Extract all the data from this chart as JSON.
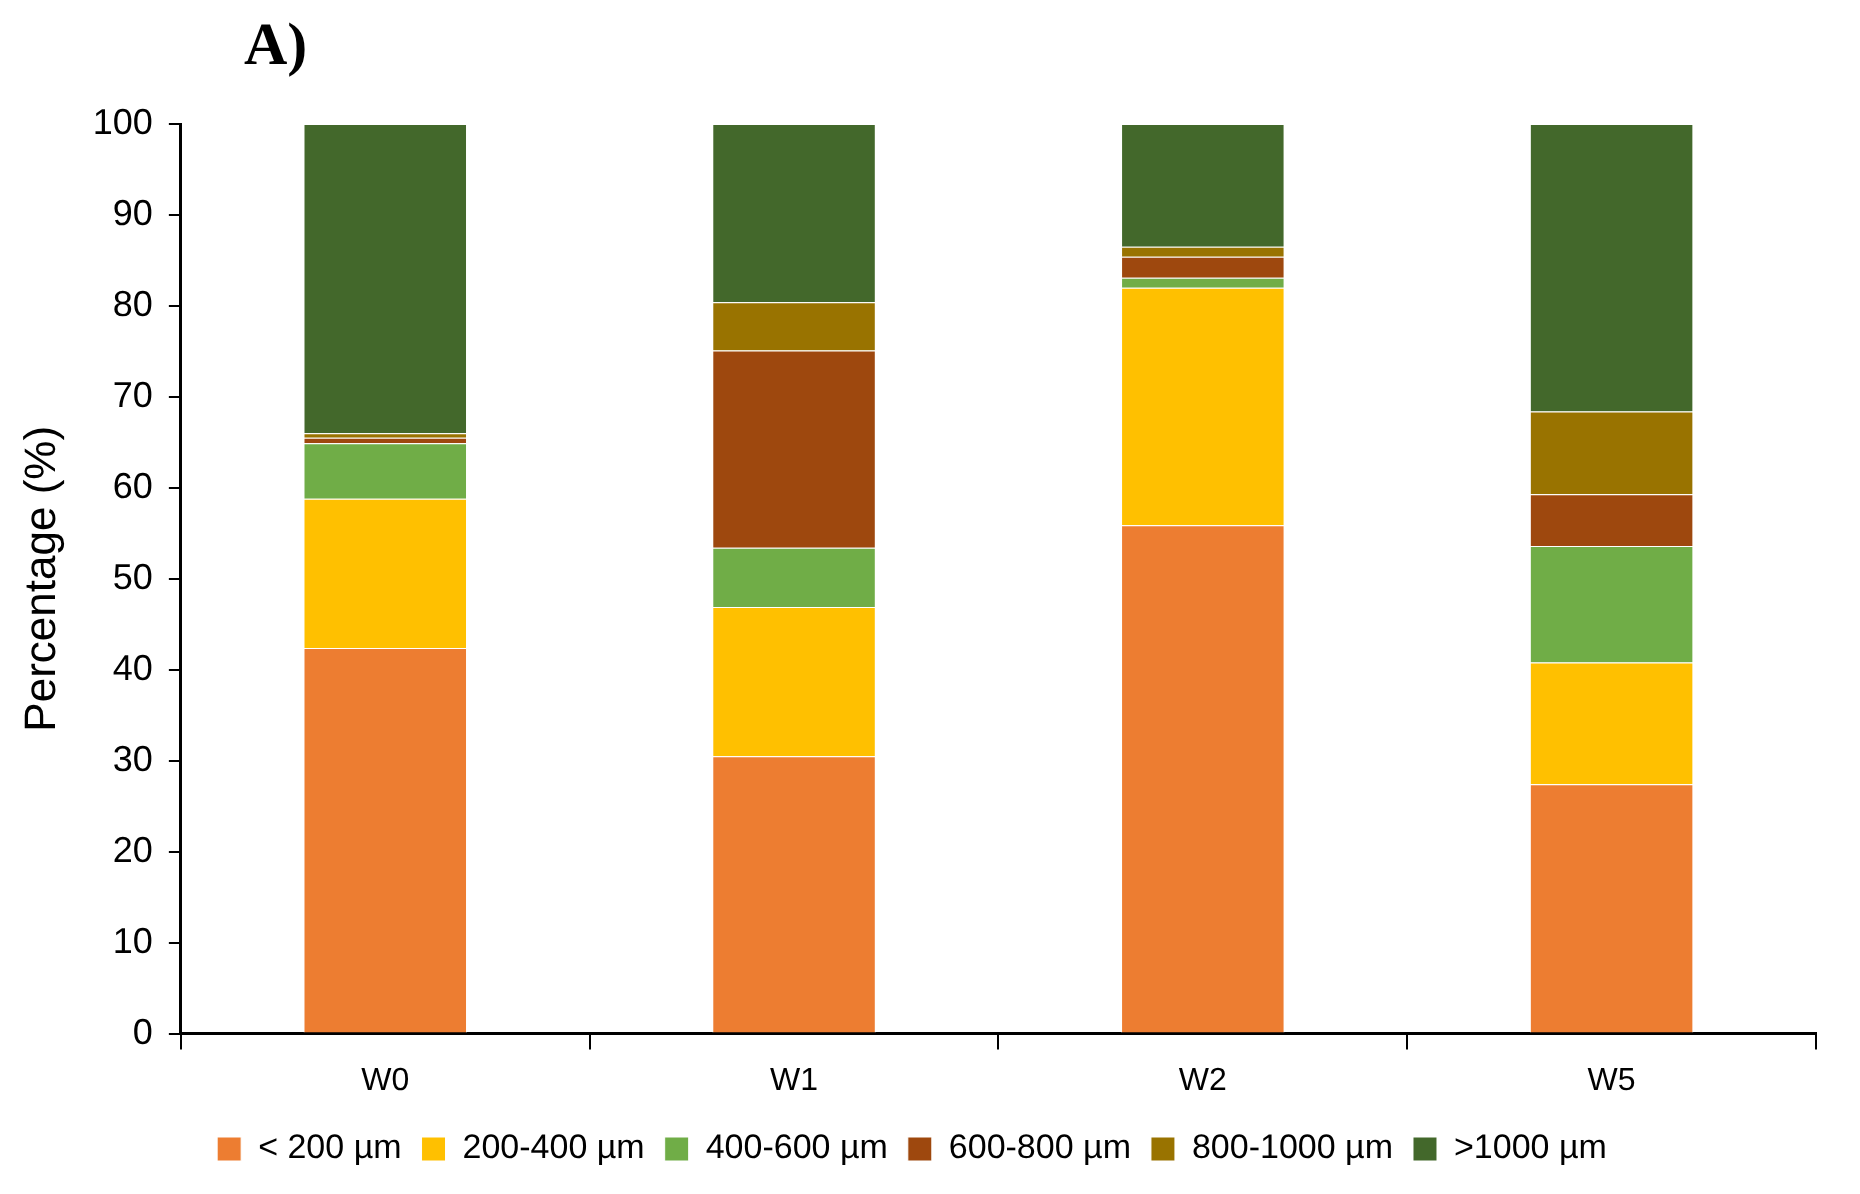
{
  "chart_data": {
    "type": "bar",
    "title": "A)",
    "ylabel": "Percentage (%)",
    "categories": [
      "W0",
      "W1",
      "W2",
      "W5"
    ],
    "stacked": true,
    "ylim": [
      0,
      100
    ],
    "yticks": [
      0,
      10,
      20,
      30,
      40,
      50,
      60,
      70,
      80,
      90,
      100
    ],
    "legend": "bottom",
    "series": [
      {
        "name": "< 200 µm",
        "color": "#ed7d31",
        "values": [
          42.4,
          30.5,
          55.9,
          27.4
        ]
      },
      {
        "name": "200-400 µm",
        "color": "#ffc000",
        "values": [
          16.4,
          16.4,
          26.1,
          13.4
        ]
      },
      {
        "name": "400-600 µm",
        "color": "#70ad47",
        "values": [
          6.1,
          6.5,
          1.1,
          12.8
        ]
      },
      {
        "name": "600-800 µm",
        "color": "#9e480e",
        "values": [
          0.6,
          21.7,
          2.3,
          5.7
        ]
      },
      {
        "name": "800-1000 µm",
        "color": "#997300",
        "values": [
          0.5,
          5.3,
          1.1,
          9.1
        ]
      },
      {
        "name": ">1000 µm",
        "color": "#43682b",
        "values": [
          34.0,
          19.6,
          13.5,
          31.6
        ]
      }
    ]
  }
}
